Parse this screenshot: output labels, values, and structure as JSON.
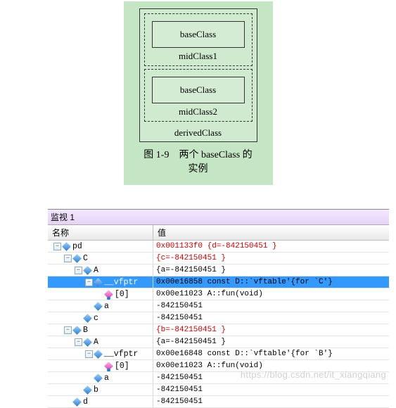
{
  "diagram": {
    "base1": "baseClass",
    "mid1": "midClass1",
    "base2": "baseClass",
    "mid2": "midClass2",
    "derived": "derivedClass",
    "caption": "图 1-9　两个 baseClass 的实例"
  },
  "watch": {
    "title": "监视 1",
    "col_name": "名称",
    "col_value": "值",
    "rows": [
      {
        "indent": 0,
        "toggle": "−",
        "icon": "d",
        "name": "pd",
        "value": "0x001133f0 {d=-842150451 }",
        "color": "red",
        "sel": false
      },
      {
        "indent": 1,
        "toggle": "−",
        "icon": "d",
        "name": "C",
        "value": "{c=-842150451 }",
        "color": "red",
        "sel": false
      },
      {
        "indent": 2,
        "toggle": "−",
        "icon": "d",
        "name": "A",
        "value": "{a=-842150451 }",
        "color": "black",
        "sel": false
      },
      {
        "indent": 3,
        "toggle": "−",
        "icon": "d",
        "name": "__vfptr",
        "value": "0x00e16858 const D::`vftable'{for `C'}",
        "color": "black",
        "sel": true
      },
      {
        "indent": 4,
        "toggle": "",
        "icon": "p",
        "name": "[0]",
        "value": "0x00e11023 A::fun(void)",
        "color": "black",
        "sel": false
      },
      {
        "indent": 3,
        "toggle": "",
        "icon": "d",
        "name": "a",
        "value": "-842150451",
        "color": "black",
        "sel": false
      },
      {
        "indent": 2,
        "toggle": "",
        "icon": "d",
        "name": "c",
        "value": "-842150451",
        "color": "black",
        "sel": false
      },
      {
        "indent": 1,
        "toggle": "−",
        "icon": "d",
        "name": "B",
        "value": "{b=-842150451 }",
        "color": "red",
        "sel": false
      },
      {
        "indent": 2,
        "toggle": "−",
        "icon": "d",
        "name": "A",
        "value": "{a=-842150451 }",
        "color": "black",
        "sel": false
      },
      {
        "indent": 3,
        "toggle": "−",
        "icon": "d",
        "name": "__vfptr",
        "value": "0x00e16848 const D::`vftable'{for `B'}",
        "color": "black",
        "sel": false
      },
      {
        "indent": 4,
        "toggle": "",
        "icon": "p",
        "name": "[0]",
        "value": "0x00e11023 A::fun(void)",
        "color": "black",
        "sel": false
      },
      {
        "indent": 3,
        "toggle": "",
        "icon": "d",
        "name": "a",
        "value": "-842150451",
        "color": "black",
        "sel": false
      },
      {
        "indent": 2,
        "toggle": "",
        "icon": "d",
        "name": "b",
        "value": "-842150451",
        "color": "black",
        "sel": false
      },
      {
        "indent": 1,
        "toggle": "",
        "icon": "d",
        "name": "d",
        "value": "-842150451",
        "color": "black",
        "sel": false
      }
    ]
  },
  "watermark": "https://blog.csdn.net/it_xiangqiang"
}
